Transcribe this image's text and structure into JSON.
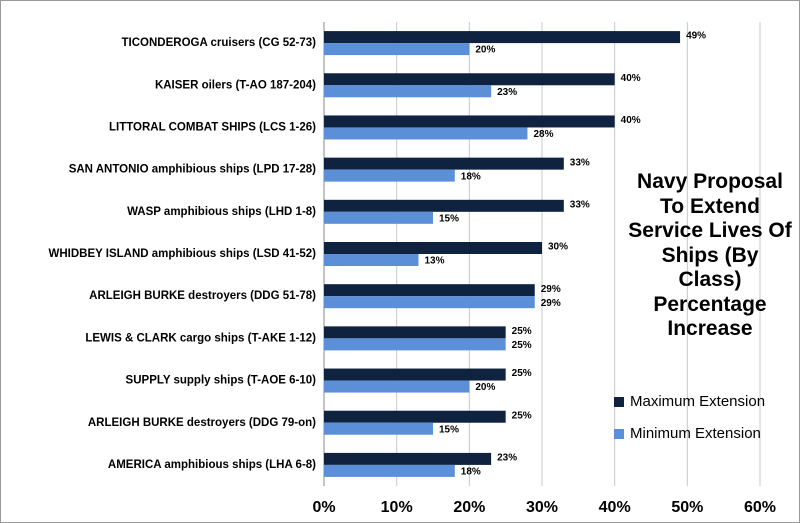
{
  "chart_data": {
    "type": "bar",
    "orientation": "horizontal",
    "title": "Navy Proposal To Extend Service Lives Of Ships (By Class) Percentage Increase",
    "categories": [
      "TICONDEROGA cruisers (CG 52-73)",
      "KAISER oilers (T-AO 187-204)",
      "LITTORAL COMBAT SHIPS (LCS 1-26)",
      "SAN ANTONIO amphibious ships (LPD 17-28)",
      "WASP amphibious ships (LHD 1-8)",
      "WHIDBEY ISLAND amphibious ships (LSD 41-52)",
      "ARLEIGH BURKE destroyers (DDG 51-78)",
      "LEWIS & CLARK cargo ships (T-AKE 1-12)",
      "SUPPLY supply ships (T-AOE 6-10)",
      "ARLEIGH BURKE destroyers (DDG 79-on)",
      "AMERICA amphibious ships (LHA 6-8)"
    ],
    "series": [
      {
        "name": "Maximum Extension",
        "color": "#0f2240",
        "values": [
          49,
          40,
          40,
          33,
          33,
          30,
          29,
          25,
          25,
          25,
          23
        ],
        "value_labels": [
          "49%",
          "40%",
          "40%",
          "33%",
          "33%",
          "30%",
          "29%",
          "25%",
          "25%",
          "25%",
          "23%"
        ]
      },
      {
        "name": "Minimum Extension",
        "color": "#5b8fd8",
        "values": [
          20,
          23,
          28,
          18,
          15,
          13,
          29,
          25,
          20,
          15,
          18
        ],
        "value_labels": [
          "20%",
          "23%",
          "28%",
          "18%",
          "15%",
          "13%",
          "29%",
          "25%",
          "20%",
          "15%",
          "18%"
        ]
      }
    ],
    "xlim": [
      0,
      60
    ],
    "xticks": [
      {
        "value": 0,
        "label": "0%"
      },
      {
        "value": 10,
        "label": "10%"
      },
      {
        "value": 20,
        "label": "20%"
      },
      {
        "value": 30,
        "label": "30%"
      },
      {
        "value": 40,
        "label": "40%"
      },
      {
        "value": 50,
        "label": "50%"
      },
      {
        "value": 60,
        "label": "60%"
      }
    ],
    "grid": true,
    "legend": "lower right"
  }
}
